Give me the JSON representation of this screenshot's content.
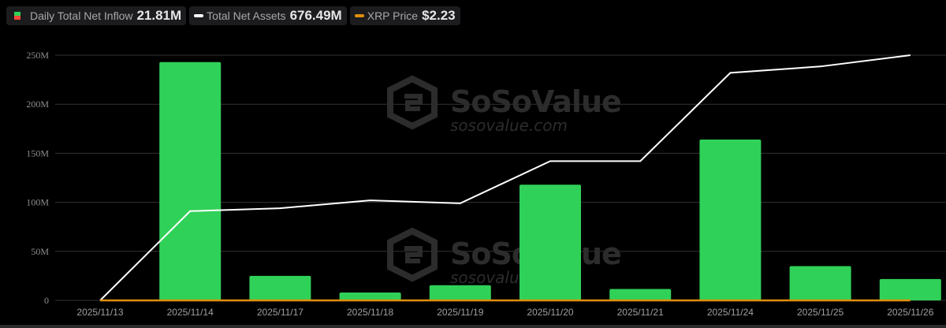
{
  "legend": {
    "items": [
      {
        "label": "Daily Total Net Inflow",
        "value": "21.81M",
        "icon": "inflow-swatch-icon"
      },
      {
        "label": "Total Net Assets",
        "value": "676.49M",
        "icon": "line-swatch-icon",
        "color": "#ffffff"
      },
      {
        "label": "XRP Price",
        "value": "$2.23",
        "icon": "line-swatch-icon",
        "color": "#e08e0b"
      }
    ]
  },
  "watermark": {
    "brand": "SoSoValue",
    "url": "sosovalue.com"
  },
  "colors": {
    "bar": "#30d158",
    "assets_line": "#ffffff",
    "price_line": "#e08e0b",
    "grid": "#333333",
    "axis_text": "#8e8e8e"
  },
  "chart_data": {
    "type": "bar",
    "title": "",
    "xlabel": "",
    "ylabel": "",
    "ylim": [
      0,
      250
    ],
    "yticks": [
      "0",
      "50M",
      "100M",
      "150M",
      "200M",
      "250M"
    ],
    "grid": true,
    "legend_position": "top-left",
    "categories": [
      "2025/11/13",
      "2025/11/14",
      "2025/11/17",
      "2025/11/18",
      "2025/11/19",
      "2025/11/20",
      "2025/11/21",
      "2025/11/24",
      "2025/11/25",
      "2025/11/26"
    ],
    "series": [
      {
        "name": "Daily Total Net Inflow",
        "type": "bar",
        "unit": "M USD",
        "values": [
          0,
          243,
          25,
          8,
          15.5,
          118,
          11.7,
          164,
          35,
          21.81
        ]
      },
      {
        "name": "Total Net Assets",
        "type": "line",
        "unit": "M USD (scaled on left axis)",
        "values": [
          0,
          91,
          94,
          102,
          99,
          142,
          142,
          232,
          238.5,
          250
        ]
      },
      {
        "name": "XRP Price",
        "type": "line",
        "unit": "USD",
        "values": [
          0,
          0,
          0,
          0,
          0,
          0,
          0,
          0,
          0,
          0
        ]
      }
    ]
  }
}
